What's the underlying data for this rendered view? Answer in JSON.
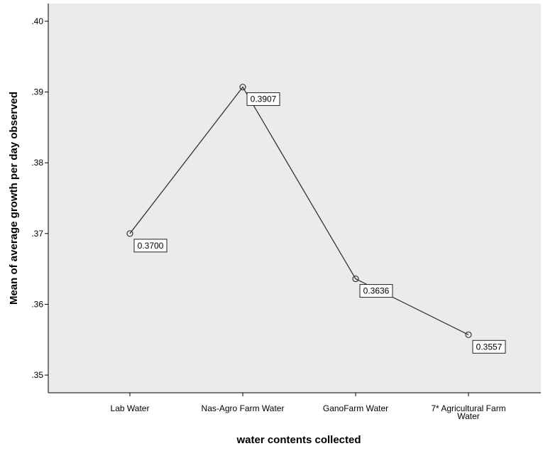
{
  "chart_data": {
    "type": "line",
    "title": "",
    "xlabel": "water contents collected",
    "ylabel": "Mean of average growth per day observed",
    "categories": [
      "Lab Water",
      "Nas-Agro Farm Water",
      "GanoFarm Water",
      "7* Agricultural Farm Water"
    ],
    "category_label_lines": [
      [
        "Lab Water"
      ],
      [
        "Nas-Agro Farm Water"
      ],
      [
        "GanoFarm Water"
      ],
      [
        "7* Agricultural Farm",
        "Water"
      ]
    ],
    "series": [
      {
        "values": [
          0.37,
          0.3907,
          0.3636,
          0.3557
        ]
      }
    ],
    "data_labels": [
      "0.3700",
      "0.3907",
      "0.3636",
      "0.3557"
    ],
    "yticks": [
      0.35,
      0.36,
      0.37,
      0.38,
      0.39,
      0.4
    ],
    "ytick_labels": [
      ".35",
      ".36",
      ".37",
      ".38",
      ".39",
      ".40"
    ],
    "ylim": [
      0.3475,
      0.4025
    ],
    "grid": false,
    "legend": "none",
    "colors": {
      "plot_background": "#ebebeb",
      "line": "#333333",
      "marker_stroke": "#333333",
      "axis": "#000000",
      "label_box_border": "#222222"
    }
  }
}
